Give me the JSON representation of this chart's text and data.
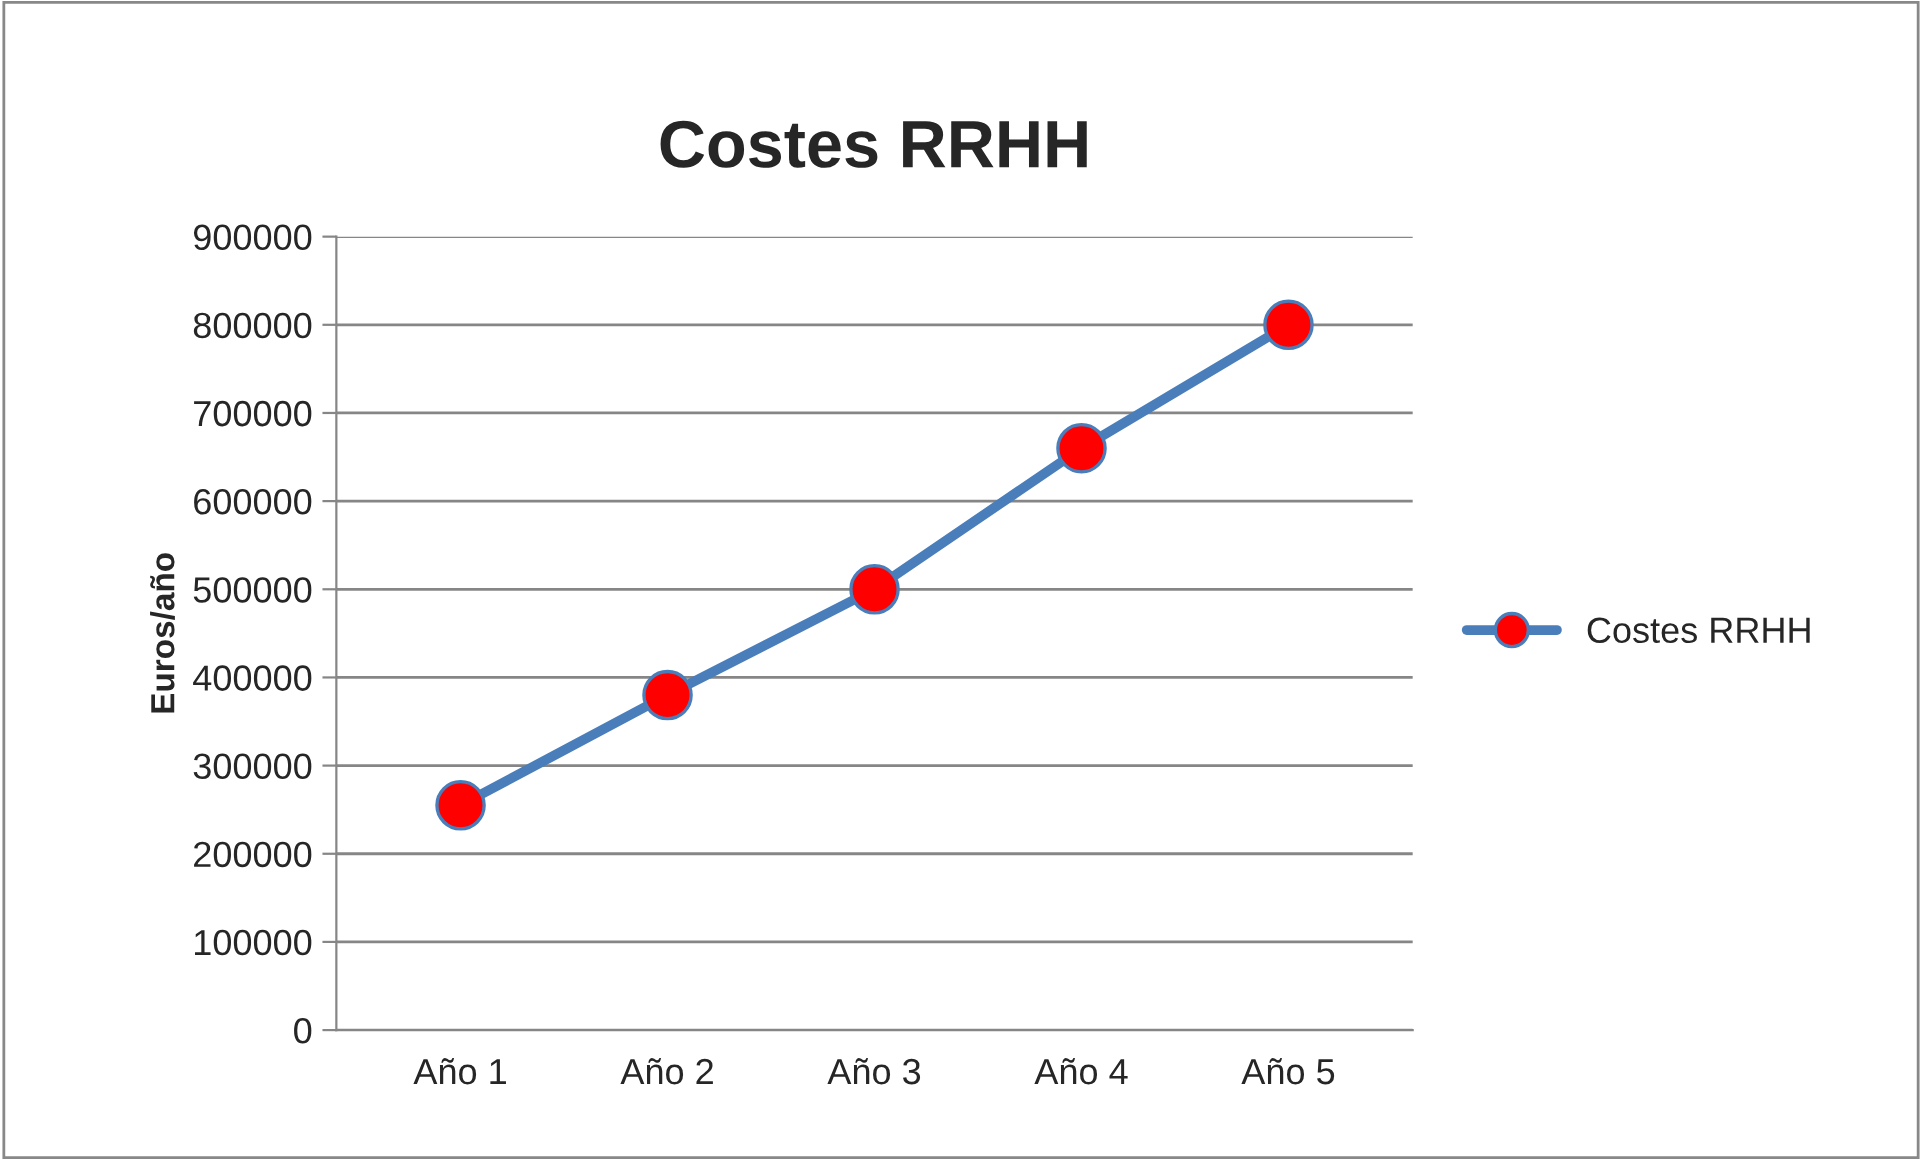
{
  "chart_data": {
    "type": "line",
    "title": "Costes RRHH",
    "ylabel": "Euros/año",
    "categories": [
      "Año 1",
      "Año 2",
      "Año 3",
      "Año 4",
      "Año 5"
    ],
    "series": [
      {
        "name": "Costes RRHH",
        "color": "#4a7ebb",
        "values": [
          255000,
          380000,
          500000,
          660000,
          800000
        ]
      }
    ],
    "ylim": [
      0,
      900000
    ],
    "yticks": [
      0,
      100000,
      200000,
      300000,
      400000,
      500000,
      600000,
      700000,
      800000,
      900000
    ],
    "grid": "y",
    "legend": "right",
    "marker": "circle",
    "line_style": "solid"
  }
}
